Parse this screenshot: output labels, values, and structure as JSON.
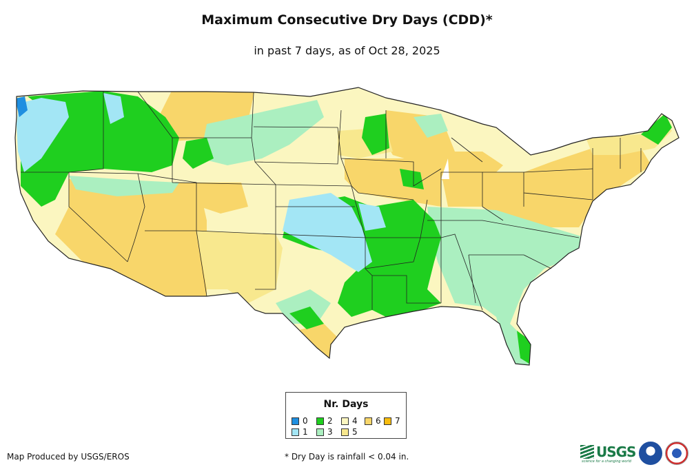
{
  "title": "Maximum Consecutive Dry Days (CDD)*",
  "subtitle": "in past 7 days, as of Oct 28, 2025",
  "legend": {
    "title": "Nr. Days",
    "items": [
      {
        "label": "0",
        "color": "#1f8fe0"
      },
      {
        "label": "1",
        "color": "#a3e6f5"
      },
      {
        "label": "2",
        "color": "#1fcf1f"
      },
      {
        "label": "3",
        "color": "#abefc0"
      },
      {
        "label": "4",
        "color": "#fbf6c0"
      },
      {
        "label": "5",
        "color": "#f8e88e"
      },
      {
        "label": "6",
        "color": "#f8d66a"
      },
      {
        "label": "7",
        "color": "#f8bc0e"
      }
    ]
  },
  "credit": "Map Produced by USGS/EROS",
  "footnote": "* Dry Day is rainfall < 0.04 in.",
  "logos": {
    "usgs": "USGS",
    "usgs_tagline": "science for a changing world",
    "noaa": "noaa-logo",
    "nws": "nws-logo"
  }
}
